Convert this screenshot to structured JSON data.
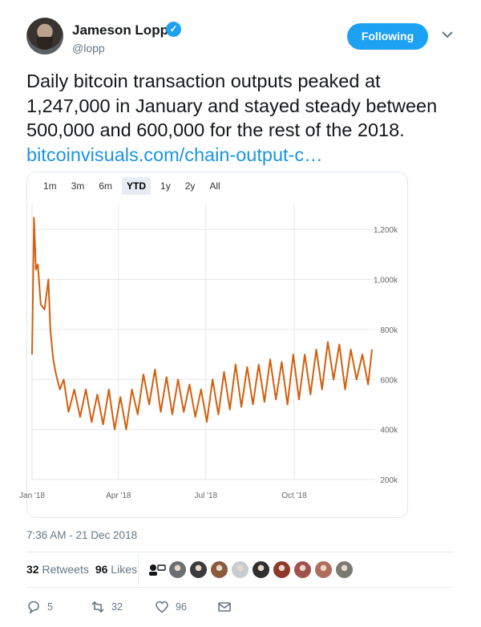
{
  "user": {
    "name": "Jameson Lopp",
    "handle": "@lopp",
    "follow_label": "Following",
    "verified_glyph": "✓"
  },
  "tweet": {
    "text": "Daily bitcoin transaction outputs peaked at 1,247,000 in January and stayed steady between 500,000 and 600,000 for the rest of the 2018. ",
    "link_text": "bitcoinvisuals.com/chain-output-c…",
    "timestamp": "7:36 AM - 21 Dec 2018"
  },
  "chart_controls": {
    "ranges": [
      "1m",
      "3m",
      "6m",
      "YTD",
      "1y",
      "2y",
      "All"
    ],
    "selected": "YTD"
  },
  "chart_data": {
    "type": "line",
    "series_color": "#d2600f",
    "x_tick_labels": [
      "Jan '18",
      "Apr '18",
      "Jul '18",
      "Oct '18"
    ],
    "y_tick_labels": [
      "200k",
      "400k",
      "600k",
      "800k",
      "1,000k",
      "1,200k"
    ],
    "ylim": [
      200000,
      1300000
    ],
    "grid": true,
    "y_axis_side": "right",
    "x_start": "2018-01-01",
    "x_end": "2018-12-21",
    "peak": {
      "date": "2018-01-03",
      "value": 1247000
    },
    "dates": [
      "2018-01-01",
      "2018-01-03",
      "2018-01-05",
      "2018-01-07",
      "2018-01-10",
      "2018-01-14",
      "2018-01-18",
      "2018-01-20",
      "2018-01-23",
      "2018-01-26",
      "2018-01-30",
      "2018-02-03",
      "2018-02-08",
      "2018-02-14",
      "2018-02-20",
      "2018-02-26",
      "2018-03-04",
      "2018-03-10",
      "2018-03-16",
      "2018-03-22",
      "2018-03-28",
      "2018-04-03",
      "2018-04-09",
      "2018-04-15",
      "2018-04-21",
      "2018-04-27",
      "2018-05-03",
      "2018-05-09",
      "2018-05-15",
      "2018-05-21",
      "2018-05-27",
      "2018-06-02",
      "2018-06-08",
      "2018-06-14",
      "2018-06-20",
      "2018-06-26",
      "2018-07-02",
      "2018-07-08",
      "2018-07-14",
      "2018-07-20",
      "2018-07-26",
      "2018-08-01",
      "2018-08-07",
      "2018-08-13",
      "2018-08-19",
      "2018-08-25",
      "2018-08-31",
      "2018-09-06",
      "2018-09-12",
      "2018-09-18",
      "2018-09-24",
      "2018-09-30",
      "2018-10-06",
      "2018-10-12",
      "2018-10-18",
      "2018-10-24",
      "2018-10-30",
      "2018-11-05",
      "2018-11-11",
      "2018-11-17",
      "2018-11-23",
      "2018-11-29",
      "2018-12-05",
      "2018-12-11",
      "2018-12-17",
      "2018-12-21"
    ],
    "values": [
      700000,
      1247000,
      1040000,
      1060000,
      900000,
      880000,
      1000000,
      800000,
      680000,
      620000,
      560000,
      600000,
      470000,
      560000,
      450000,
      560000,
      430000,
      540000,
      420000,
      560000,
      400000,
      530000,
      400000,
      560000,
      460000,
      620000,
      500000,
      640000,
      470000,
      610000,
      460000,
      600000,
      470000,
      580000,
      450000,
      560000,
      430000,
      600000,
      460000,
      630000,
      480000,
      660000,
      490000,
      650000,
      500000,
      660000,
      510000,
      680000,
      520000,
      670000,
      500000,
      700000,
      520000,
      700000,
      540000,
      720000,
      560000,
      750000,
      600000,
      740000,
      560000,
      720000,
      600000,
      700000,
      580000,
      720000
    ]
  },
  "engagement": {
    "retweets_count": "32",
    "retweets_label": "Retweets",
    "likes_count": "96",
    "likes_label": "Likes",
    "liker_colors": [
      "#6b6f73",
      "#3b3b3b",
      "#8a5a3c",
      "#c7ccd1",
      "#2f2f2f",
      "#8c3a2b",
      "#a0524e",
      "#b06c5c",
      "#7a7a70"
    ]
  },
  "actions": {
    "reply_count": "5",
    "retweet_count": "32",
    "like_count": "96"
  }
}
